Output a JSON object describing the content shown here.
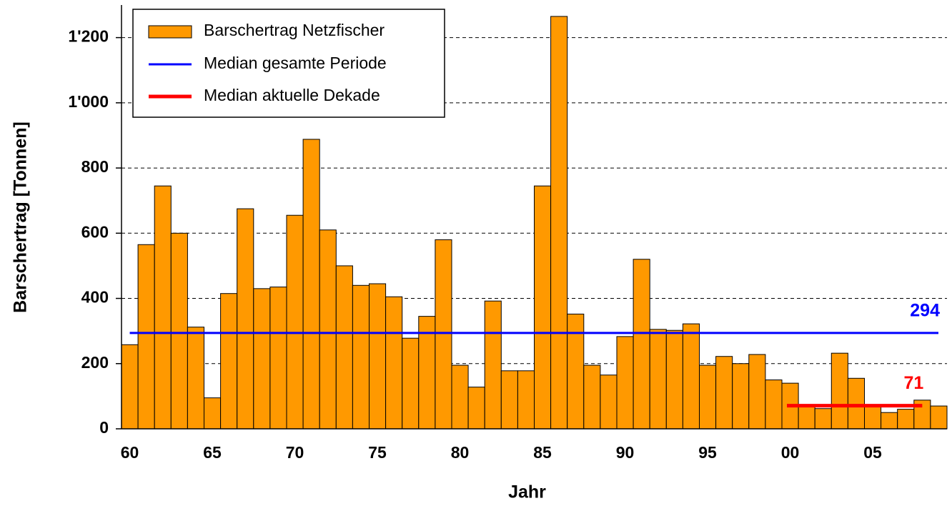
{
  "chart_data": {
    "type": "bar",
    "x_label": "Jahr",
    "y_label": "Barschertrag [Tonnen]",
    "categories": [
      "60",
      null,
      null,
      null,
      null,
      "65",
      null,
      null,
      null,
      null,
      "70",
      null,
      null,
      null,
      null,
      "75",
      null,
      null,
      null,
      null,
      "80",
      null,
      null,
      null,
      null,
      "85",
      null,
      null,
      null,
      null,
      "90",
      null,
      null,
      null,
      null,
      "95",
      null,
      null,
      null,
      null,
      "00",
      null,
      null,
      null,
      null,
      "05",
      null,
      null,
      null,
      null
    ],
    "series": [
      {
        "name": "Barschertrag Netzfischer",
        "color": "#ff9900",
        "values": [
          258,
          565,
          745,
          600,
          312,
          95,
          415,
          675,
          430,
          435,
          655,
          888,
          610,
          500,
          440,
          445,
          405,
          278,
          345,
          580,
          195,
          128,
          392,
          178,
          178,
          745,
          1265,
          352,
          195,
          165,
          283,
          520,
          305,
          302,
          322,
          195,
          222,
          200,
          228,
          150,
          140,
          70,
          62,
          232,
          155,
          68,
          50,
          60,
          88,
          70
        ]
      }
    ],
    "medians": [
      {
        "name": "Median gesamte Periode",
        "color": "#0000ff",
        "value": 294
      },
      {
        "name": "Median aktuelle Dekade",
        "color": "#ff0000",
        "value": 71
      }
    ],
    "ylim": [
      0,
      1300
    ],
    "yticks": [
      0,
      200,
      400,
      600,
      800,
      {
        "value": 1000,
        "label": "1'000"
      },
      {
        "value": 1200,
        "label": "1'200"
      }
    ],
    "grid": true
  }
}
